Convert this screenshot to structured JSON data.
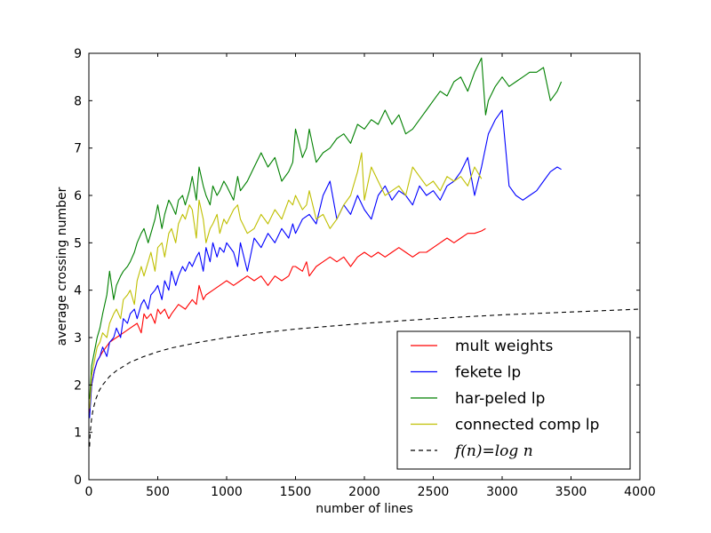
{
  "chart_data": {
    "type": "line",
    "title": "",
    "xlabel": "number of lines",
    "ylabel": "average crossing number",
    "xlim": [
      0,
      4000
    ],
    "ylim": [
      0,
      9
    ],
    "xticks": [
      "0",
      "500",
      "1000",
      "1500",
      "2000",
      "2500",
      "3000",
      "3500",
      "4000"
    ],
    "yticks": [
      "0",
      "1",
      "2",
      "3",
      "4",
      "5",
      "6",
      "7",
      "8",
      "9"
    ],
    "grid": false,
    "legend_position": "bottom-right",
    "series": [
      {
        "name": "mult weights",
        "color": "#ff0000",
        "dash": "solid",
        "x": [
          5,
          20,
          40,
          60,
          80,
          100,
          150,
          200,
          250,
          300,
          350,
          380,
          400,
          420,
          450,
          480,
          500,
          520,
          550,
          580,
          600,
          650,
          700,
          750,
          780,
          800,
          830,
          850,
          900,
          950,
          1000,
          1050,
          1100,
          1150,
          1200,
          1250,
          1300,
          1350,
          1400,
          1450,
          1480,
          1500,
          1550,
          1580,
          1600,
          1650,
          1700,
          1750,
          1800,
          1850,
          1900,
          1950,
          2000,
          2050,
          2100,
          2150,
          2200,
          2250,
          2300,
          2350,
          2400,
          2450,
          2500,
          2550,
          2600,
          2650,
          2700,
          2750,
          2800,
          2850,
          2880
        ],
        "y": [
          1.4,
          2.0,
          2.3,
          2.5,
          2.6,
          2.7,
          2.9,
          3.0,
          3.1,
          3.2,
          3.3,
          3.1,
          3.5,
          3.4,
          3.5,
          3.3,
          3.6,
          3.5,
          3.6,
          3.4,
          3.5,
          3.7,
          3.6,
          3.8,
          3.7,
          4.1,
          3.8,
          3.9,
          4.0,
          4.1,
          4.2,
          4.1,
          4.2,
          4.3,
          4.2,
          4.3,
          4.1,
          4.3,
          4.2,
          4.3,
          4.5,
          4.5,
          4.4,
          4.6,
          4.3,
          4.5,
          4.6,
          4.7,
          4.6,
          4.7,
          4.5,
          4.7,
          4.8,
          4.7,
          4.8,
          4.7,
          4.8,
          4.9,
          4.8,
          4.7,
          4.8,
          4.8,
          4.9,
          5.0,
          5.1,
          5.0,
          5.1,
          5.2,
          5.2,
          5.25,
          5.3
        ]
      },
      {
        "name": "fekete lp",
        "color": "#0000ff",
        "dash": "solid",
        "x": [
          5,
          20,
          40,
          60,
          80,
          100,
          130,
          150,
          180,
          200,
          230,
          250,
          280,
          300,
          330,
          350,
          380,
          400,
          430,
          450,
          480,
          500,
          530,
          550,
          580,
          600,
          630,
          650,
          680,
          700,
          730,
          750,
          780,
          800,
          830,
          850,
          880,
          900,
          930,
          950,
          980,
          1000,
          1050,
          1080,
          1100,
          1150,
          1200,
          1250,
          1300,
          1350,
          1400,
          1450,
          1480,
          1500,
          1550,
          1600,
          1650,
          1700,
          1750,
          1800,
          1850,
          1900,
          1950,
          2000,
          2050,
          2100,
          2150,
          2200,
          2250,
          2300,
          2350,
          2400,
          2450,
          2500,
          2550,
          2600,
          2650,
          2700,
          2750,
          2800,
          2850,
          2900,
          2950,
          3000,
          3050,
          3100,
          3150,
          3200,
          3250,
          3300,
          3350,
          3400,
          3430
        ],
        "y": [
          1.3,
          2.0,
          2.3,
          2.5,
          2.6,
          2.8,
          2.6,
          2.9,
          3.0,
          3.2,
          3.0,
          3.4,
          3.3,
          3.5,
          3.6,
          3.4,
          3.7,
          3.8,
          3.6,
          3.9,
          4.0,
          4.1,
          3.8,
          4.2,
          4.0,
          4.4,
          4.1,
          4.3,
          4.5,
          4.4,
          4.6,
          4.5,
          4.7,
          4.8,
          4.4,
          4.9,
          4.6,
          5.0,
          4.7,
          4.9,
          4.8,
          5.0,
          4.8,
          4.5,
          5.0,
          4.4,
          5.1,
          4.9,
          5.2,
          5.0,
          5.3,
          5.1,
          5.4,
          5.2,
          5.5,
          5.6,
          5.4,
          6.0,
          6.3,
          5.5,
          5.8,
          5.6,
          6.0,
          5.7,
          5.5,
          6.0,
          6.2,
          5.9,
          6.1,
          6.0,
          5.8,
          6.2,
          6.0,
          6.1,
          5.9,
          6.2,
          6.3,
          6.5,
          6.8,
          6.0,
          6.6,
          7.3,
          7.6,
          7.8,
          6.2,
          6.0,
          5.9,
          6.0,
          6.1,
          6.3,
          6.5,
          6.6,
          6.55
        ]
      },
      {
        "name": "har-peled lp",
        "color": "#008000",
        "dash": "solid",
        "x": [
          5,
          20,
          40,
          60,
          80,
          100,
          130,
          150,
          180,
          200,
          230,
          250,
          280,
          300,
          330,
          350,
          380,
          400,
          430,
          450,
          480,
          500,
          530,
          550,
          580,
          600,
          630,
          650,
          680,
          700,
          730,
          750,
          780,
          800,
          830,
          850,
          880,
          900,
          930,
          950,
          980,
          1000,
          1050,
          1080,
          1100,
          1150,
          1200,
          1250,
          1300,
          1350,
          1400,
          1450,
          1480,
          1500,
          1550,
          1580,
          1600,
          1650,
          1700,
          1750,
          1800,
          1850,
          1900,
          1950,
          2000,
          2050,
          2100,
          2150,
          2200,
          2250,
          2300,
          2350,
          2400,
          2450,
          2500,
          2550,
          2600,
          2650,
          2700,
          2750,
          2800,
          2850,
          2880,
          2900,
          2950,
          3000,
          3050,
          3100,
          3150,
          3200,
          3250,
          3300,
          3350,
          3400,
          3430
        ],
        "y": [
          1.7,
          2.4,
          2.7,
          3.0,
          3.2,
          3.5,
          3.9,
          4.4,
          3.8,
          4.1,
          4.3,
          4.4,
          4.5,
          4.6,
          4.8,
          5.0,
          5.2,
          5.3,
          5.0,
          5.2,
          5.5,
          5.8,
          5.3,
          5.6,
          5.9,
          5.8,
          5.6,
          5.9,
          6.0,
          5.8,
          6.1,
          6.4,
          5.9,
          6.6,
          6.2,
          6.0,
          5.8,
          6.2,
          6.0,
          6.1,
          6.3,
          6.2,
          5.9,
          6.4,
          6.1,
          6.3,
          6.6,
          6.9,
          6.6,
          6.8,
          6.3,
          6.5,
          6.7,
          7.4,
          6.8,
          7.0,
          7.4,
          6.7,
          6.9,
          7.0,
          7.2,
          7.3,
          7.1,
          7.5,
          7.4,
          7.6,
          7.5,
          7.8,
          7.5,
          7.7,
          7.3,
          7.4,
          7.6,
          7.8,
          8.0,
          8.2,
          8.1,
          8.4,
          8.5,
          8.2,
          8.6,
          8.9,
          7.7,
          8.0,
          8.3,
          8.5,
          8.3,
          8.4,
          8.5,
          8.6,
          8.6,
          8.7,
          8.0,
          8.2,
          8.4
        ]
      },
      {
        "name": "connected comp lp",
        "color": "#bfbf00",
        "dash": "solid",
        "x": [
          5,
          20,
          40,
          60,
          80,
          100,
          130,
          150,
          180,
          200,
          230,
          250,
          280,
          300,
          330,
          350,
          380,
          400,
          430,
          450,
          480,
          500,
          530,
          550,
          580,
          600,
          630,
          650,
          680,
          700,
          730,
          750,
          780,
          800,
          830,
          850,
          880,
          900,
          930,
          950,
          980,
          1000,
          1050,
          1080,
          1100,
          1150,
          1200,
          1250,
          1300,
          1350,
          1400,
          1450,
          1480,
          1500,
          1550,
          1580,
          1600,
          1650,
          1700,
          1750,
          1800,
          1850,
          1900,
          1950,
          1980,
          2000,
          2050,
          2100,
          2150,
          2200,
          2250,
          2300,
          2350,
          2400,
          2450,
          2500,
          2550,
          2600,
          2650,
          2700,
          2750,
          2800,
          2850
        ],
        "y": [
          1.5,
          2.2,
          2.5,
          2.8,
          2.9,
          3.1,
          3.0,
          3.3,
          3.5,
          3.6,
          3.4,
          3.8,
          3.9,
          4.0,
          3.7,
          4.2,
          4.5,
          4.3,
          4.6,
          4.8,
          4.4,
          4.9,
          5.0,
          4.7,
          5.2,
          5.3,
          5.0,
          5.4,
          5.6,
          5.5,
          5.8,
          5.7,
          5.1,
          5.9,
          5.5,
          5.0,
          5.3,
          5.4,
          5.6,
          5.2,
          5.5,
          5.4,
          5.7,
          5.8,
          5.5,
          5.2,
          5.3,
          5.6,
          5.4,
          5.7,
          5.5,
          5.9,
          5.8,
          6.0,
          5.7,
          5.8,
          6.1,
          5.5,
          5.6,
          5.3,
          5.5,
          5.8,
          6.0,
          6.5,
          6.9,
          5.9,
          6.6,
          6.3,
          6.0,
          6.1,
          6.2,
          6.0,
          6.6,
          6.4,
          6.2,
          6.3,
          6.1,
          6.4,
          6.3,
          6.4,
          6.2,
          6.6,
          6.35
        ]
      },
      {
        "name": "f(n)=log n",
        "color": "#000000",
        "dash": "dashed",
        "x": [
          5,
          10,
          20,
          30,
          50,
          75,
          100,
          150,
          200,
          300,
          400,
          500,
          600,
          800,
          1000,
          1250,
          1500,
          1750,
          2000,
          2250,
          2500,
          2750,
          3000,
          3250,
          3500,
          3750,
          4000
        ],
        "y": [
          0.7,
          1.0,
          1.3,
          1.48,
          1.7,
          1.88,
          2.0,
          2.18,
          2.3,
          2.48,
          2.6,
          2.7,
          2.78,
          2.9,
          3.0,
          3.1,
          3.18,
          3.24,
          3.3,
          3.35,
          3.4,
          3.44,
          3.48,
          3.51,
          3.54,
          3.57,
          3.6
        ]
      }
    ]
  }
}
